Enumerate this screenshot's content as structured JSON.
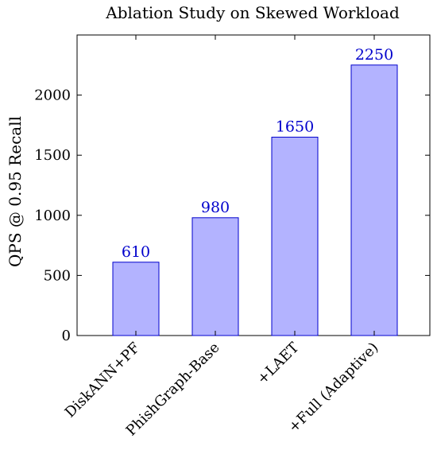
{
  "chart_data": {
    "type": "bar",
    "title": "Ablation Study on Skewed Workload",
    "xlabel": "",
    "ylabel": "QPS @ 0.95 Recall",
    "categories": [
      "DiskANN+PF",
      "PhishGraph-Base",
      "+LAET",
      "+Full (Adaptive)"
    ],
    "values": [
      610,
      980,
      1650,
      2250
    ],
    "data_labels": [
      "610",
      "980",
      "1650",
      "2250"
    ],
    "ylim": [
      0,
      2500
    ],
    "yticks": [
      0,
      500,
      1000,
      1500,
      2000
    ],
    "ytick_labels": [
      "0",
      "500",
      "1000",
      "1500",
      "2000"
    ],
    "grid": false,
    "legend": "none",
    "colors": {
      "bar_fill": "#b3b3ff",
      "bar_stroke": "#0000cc",
      "data_label": "#0000cc",
      "axis": "#000000"
    }
  }
}
